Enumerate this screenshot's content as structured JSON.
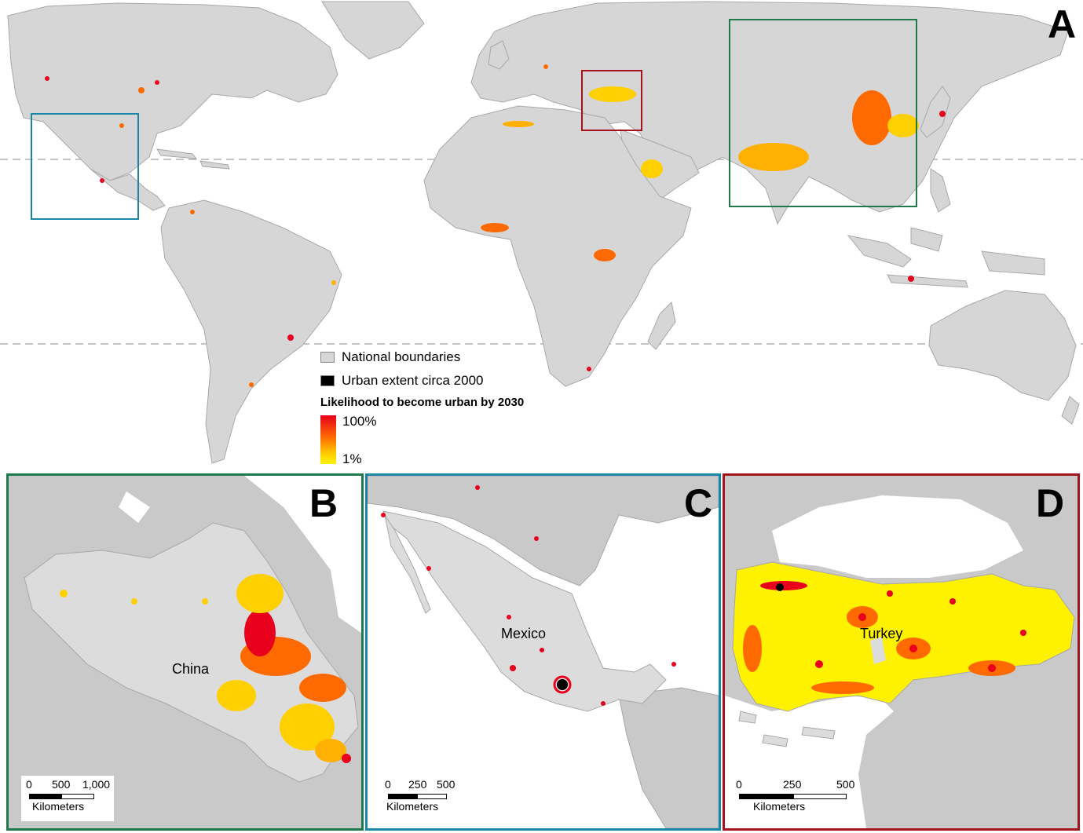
{
  "panels": {
    "a": {
      "letter": "A"
    },
    "b": {
      "letter": "B",
      "country": "China",
      "scale": {
        "ticks": [
          "0",
          "500",
          "1,000"
        ],
        "unit": "Kilometers"
      },
      "frame_color": "#1e7a4c"
    },
    "c": {
      "letter": "C",
      "country": "Mexico",
      "scale": {
        "ticks": [
          "0",
          "250",
          "500"
        ],
        "unit": "Kilometers"
      },
      "frame_color": "#1a86a8"
    },
    "d": {
      "letter": "D",
      "country": "Turkey",
      "scale": {
        "ticks": [
          "0",
          "250",
          "500"
        ],
        "unit": "Kilometers"
      },
      "frame_color": "#a3141c"
    }
  },
  "legend": {
    "boundaries_label": "National boundaries",
    "urban_label": "Urban extent circa 2000",
    "likelihood_title": "Likelihood to become urban by 2030",
    "ramp_high": "100%",
    "ramp_low": "1%"
  },
  "colors": {
    "land": "#d6d6d6",
    "border": "#a8a8a8",
    "urban": "#000000",
    "high": "#e8001c",
    "low": "#fff200",
    "china_box": "#1e7a4c",
    "mexico_box": "#1a86a8",
    "turkey_box": "#a3141c"
  }
}
